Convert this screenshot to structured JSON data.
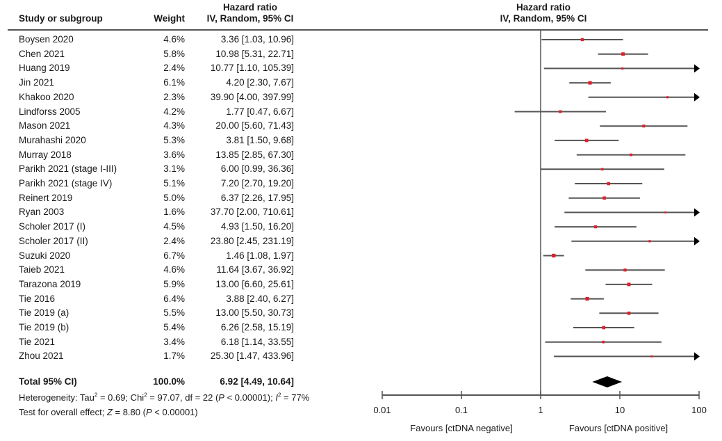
{
  "header": {
    "study_col": "Study or subgroup",
    "weight_col": "Weight",
    "hr_col_line1": "Hazard ratio",
    "hr_col_line2": "IV, Random, 95% CI",
    "plot_col_line1": "Hazard ratio",
    "plot_col_line2": "IV, Random, 95% CI"
  },
  "total": {
    "label": "Total 95% CI)",
    "weight": "100.0%",
    "ci_text": "6.92 [4.49, 10.64]"
  },
  "footnotes": {
    "heterogeneity_prefix": "Heterogeneity: Tau",
    "heterogeneity_tau_value": " = 0.69; Chi",
    "heterogeneity_chi_value": " = 97.07, df = 22 (",
    "p_symbol": "P",
    "heterogeneity_p": " <  0.00001); ",
    "i_symbol": "I",
    "heterogeneity_i2": " = 77%",
    "sq": "2",
    "overall_prefix": "Test for overall effect; ",
    "z_symbol": "Z",
    "overall_z": " = 8.80 (",
    "overall_p": " < 0.00001)"
  },
  "chart_data": {
    "type": "forest",
    "title": "Hazard ratio IV, Random, 95% CI",
    "xscale": "log",
    "xlim": [
      0.01,
      100
    ],
    "xticks": [
      0.01,
      0.1,
      1,
      10,
      100
    ],
    "xtick_labels": [
      "0.01",
      "0.1",
      "1",
      "10",
      "100"
    ],
    "reference_line": 1,
    "left_label": "Favours [ctDNA negative]",
    "right_label": "Favours [ctDNA positive]",
    "point_color": "#e0202a",
    "line_color": "#555555",
    "studies": [
      {
        "name": "Boysen 2020",
        "weight": "4.6%",
        "hr": 3.36,
        "lo": 1.03,
        "hi": 10.96,
        "ci_text": "3.36 [1.03, 10.96]"
      },
      {
        "name": "Chen 2021",
        "weight": "5.8%",
        "hr": 10.98,
        "lo": 5.31,
        "hi": 22.71,
        "ci_text": "10.98 [5.31, 22.71]"
      },
      {
        "name": "Huang 2019",
        "weight": "2.4%",
        "hr": 10.77,
        "lo": 1.1,
        "hi": 105.39,
        "ci_text": "10.77 [1.10, 105.39]"
      },
      {
        "name": "Jin 2021",
        "weight": "6.1%",
        "hr": 4.2,
        "lo": 2.3,
        "hi": 7.67,
        "ci_text": "4.20 [2.30, 7.67]"
      },
      {
        "name": "Khakoo 2020",
        "weight": "2.3%",
        "hr": 39.9,
        "lo": 4.0,
        "hi": 397.99,
        "ci_text": "39.90 [4.00, 397.99]"
      },
      {
        "name": "Lindforss 2005",
        "weight": "4.2%",
        "hr": 1.77,
        "lo": 0.47,
        "hi": 6.67,
        "ci_text": "1.77 [0.47, 6.67]"
      },
      {
        "name": "Mason 2021",
        "weight": "4.3%",
        "hr": 20.0,
        "lo": 5.6,
        "hi": 71.43,
        "ci_text": "20.00 [5.60, 71.43]"
      },
      {
        "name": "Murahashi 2020",
        "weight": "5.3%",
        "hr": 3.81,
        "lo": 1.5,
        "hi": 9.68,
        "ci_text": "3.81 [1.50, 9.68]"
      },
      {
        "name": "Murray 2018",
        "weight": "3.6%",
        "hr": 13.85,
        "lo": 2.85,
        "hi": 67.3,
        "ci_text": "13.85 [2.85, 67.30]"
      },
      {
        "name": "Parikh 2021 (stage I-III)",
        "weight": "3.1%",
        "hr": 6.0,
        "lo": 0.99,
        "hi": 36.36,
        "ci_text": "6.00 [0.99, 36.36]"
      },
      {
        "name": "Parikh 2021 (stage IV)",
        "weight": "5.1%",
        "hr": 7.2,
        "lo": 2.7,
        "hi": 19.2,
        "ci_text": "7.20 [2.70, 19.20]"
      },
      {
        "name": "Reinert 2019",
        "weight": "5.0%",
        "hr": 6.37,
        "lo": 2.26,
        "hi": 17.95,
        "ci_text": "6.37 [2.26, 17.95]"
      },
      {
        "name": "Ryan 2003",
        "weight": "1.6%",
        "hr": 37.7,
        "lo": 2.0,
        "hi": 710.61,
        "ci_text": "37.70 [2.00, 710.61]"
      },
      {
        "name": "Scholer 2017 (I)",
        "weight": "4.5%",
        "hr": 4.93,
        "lo": 1.5,
        "hi": 16.2,
        "ci_text": "4.93 [1.50, 16.20]"
      },
      {
        "name": "Scholer 2017 (II)",
        "weight": "2.4%",
        "hr": 23.8,
        "lo": 2.45,
        "hi": 231.19,
        "ci_text": "23.80 [2.45, 231.19]"
      },
      {
        "name": "Suzuki 2020",
        "weight": "6.7%",
        "hr": 1.46,
        "lo": 1.08,
        "hi": 1.97,
        "ci_text": "1.46 [1.08, 1.97]"
      },
      {
        "name": "Taieb 2021",
        "weight": "4.6%",
        "hr": 11.64,
        "lo": 3.67,
        "hi": 36.92,
        "ci_text": "11.64 [3.67, 36.92]"
      },
      {
        "name": "Tarazona 2019",
        "weight": "5.9%",
        "hr": 13.0,
        "lo": 6.6,
        "hi": 25.61,
        "ci_text": "13.00 [6.60, 25.61]"
      },
      {
        "name": "Tie 2016",
        "weight": "6.4%",
        "hr": 3.88,
        "lo": 2.4,
        "hi": 6.27,
        "ci_text": "3.88 [2.40, 6.27]"
      },
      {
        "name": "Tie 2019 (a)",
        "weight": "5.5%",
        "hr": 13.0,
        "lo": 5.5,
        "hi": 30.73,
        "ci_text": "13.00 [5.50, 30.73]"
      },
      {
        "name": "Tie 2019 (b)",
        "weight": "5.4%",
        "hr": 6.26,
        "lo": 2.58,
        "hi": 15.19,
        "ci_text": "6.26 [2.58, 15.19]"
      },
      {
        "name": "Tie 2021",
        "weight": "3.4%",
        "hr": 6.18,
        "lo": 1.14,
        "hi": 33.55,
        "ci_text": "6.18 [1.14, 33.55]"
      },
      {
        "name": "Zhou 2021",
        "weight": "1.7%",
        "hr": 25.3,
        "lo": 1.47,
        "hi": 433.96,
        "ci_text": "25.30 [1.47, 433.96]"
      }
    ],
    "pooled": {
      "hr": 6.92,
      "lo": 4.49,
      "hi": 10.64
    }
  }
}
